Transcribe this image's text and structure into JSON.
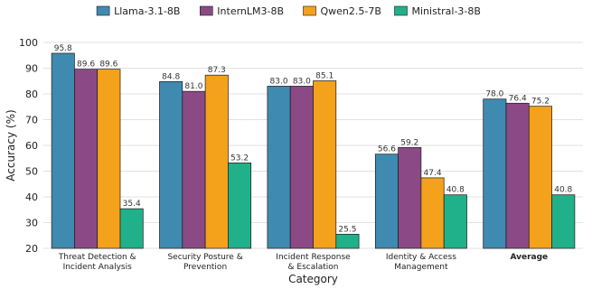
{
  "chart_data": {
    "type": "bar",
    "categories": [
      [
        "Threat Detection &",
        "Incident Analysis"
      ],
      [
        "Security Posture &",
        "Prevention"
      ],
      [
        "Incident Response",
        "& Escalation"
      ],
      [
        "Identity & Access",
        "Management"
      ],
      [
        "Average"
      ]
    ],
    "bold_categories": [
      4
    ],
    "series": [
      {
        "name": "Llama-3.1-8B",
        "color": "#3f8ab0",
        "values": [
          95.8,
          84.8,
          83.0,
          56.6,
          78.0
        ]
      },
      {
        "name": "InternLM3-8B",
        "color": "#8b4a86",
        "values": [
          89.6,
          81.0,
          83.0,
          59.2,
          76.4
        ]
      },
      {
        "name": "Qwen2.5-7B",
        "color": "#f4a11b",
        "values": [
          89.6,
          87.3,
          85.1,
          47.4,
          75.2
        ]
      },
      {
        "name": "Ministral-3-8B",
        "color": "#20b18b",
        "values": [
          35.4,
          53.2,
          25.5,
          40.8,
          40.8
        ]
      }
    ],
    "xlabel": "Category",
    "ylabel": "Accuracy (%)",
    "ylim": [
      20,
      100
    ],
    "yticks": [
      20,
      30,
      40,
      50,
      60,
      70,
      80,
      90,
      100
    ],
    "grid": true,
    "legend": "top-center"
  }
}
